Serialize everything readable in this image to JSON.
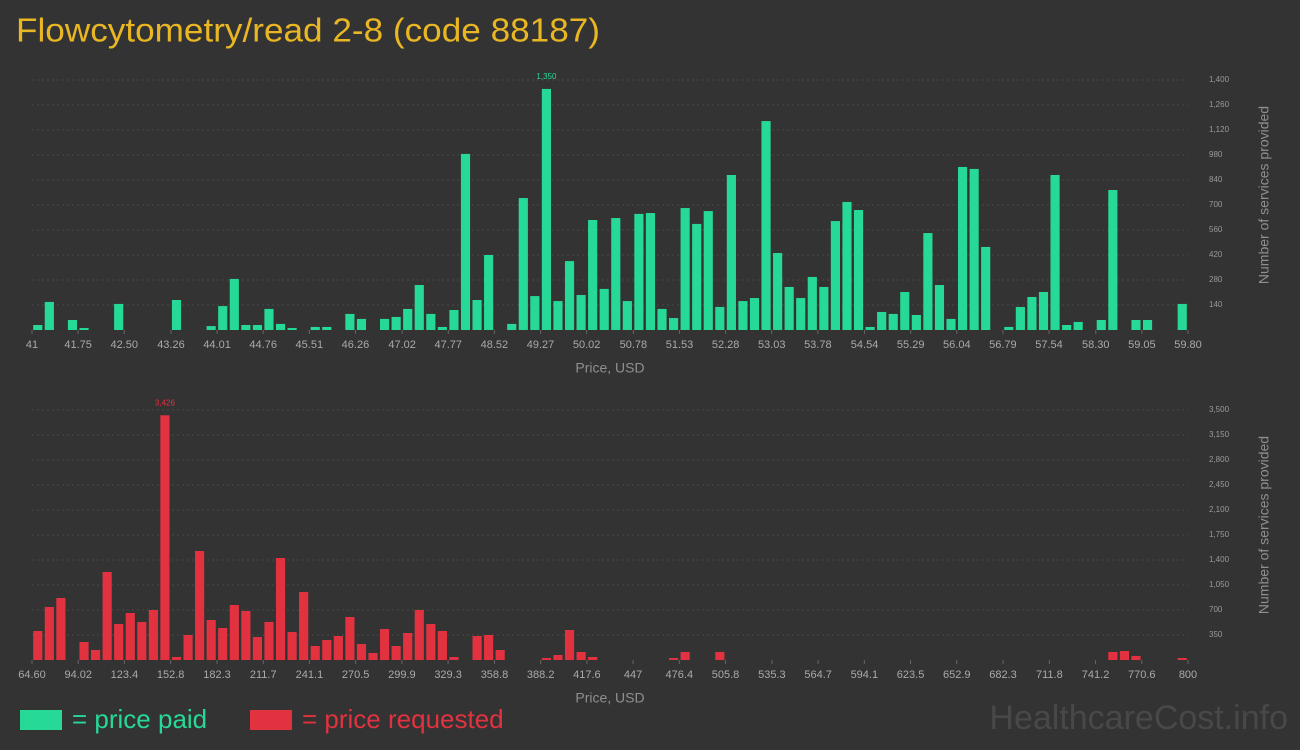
{
  "title": "Flowcytometry/read 2-8 (code 88187)",
  "legend": [
    {
      "label": "= price paid",
      "color": "#26d996"
    },
    {
      "label": "= price requested",
      "color": "#e2323f"
    }
  ],
  "watermark": "HealthcareCost.info",
  "chart_data": [
    {
      "type": "histogram",
      "color": "#26d996",
      "xlabel": "Price, USD",
      "ylabel": "Number of services provided",
      "grid": true,
      "bins": [
        41,
        41.188,
        41.376,
        41.564,
        41.752,
        41.94,
        42.128,
        42.316,
        42.504,
        42.692,
        42.88,
        43.068,
        43.256,
        43.444,
        43.632,
        43.82,
        44.008,
        44.196,
        44.384,
        44.572,
        44.76,
        44.948,
        45.136,
        45.324,
        45.512,
        45.7,
        45.888,
        46.076,
        46.264,
        46.452,
        46.64,
        46.828,
        47.016,
        47.204,
        47.392,
        47.58,
        47.768,
        47.956,
        48.144,
        48.332,
        48.52,
        48.708,
        48.896,
        49.084,
        49.272,
        49.46,
        49.648,
        49.836,
        50.024,
        50.212,
        50.4,
        50.588,
        50.776,
        50.964,
        51.152,
        51.34,
        51.528,
        51.716,
        51.904,
        52.092,
        52.28,
        52.468,
        52.656,
        52.844,
        53.032,
        53.22,
        53.408,
        53.596,
        53.784,
        53.972,
        54.16,
        54.348,
        54.536,
        54.724,
        54.912,
        55.1,
        55.288,
        55.476,
        55.664,
        55.852,
        56.04,
        56.228,
        56.416,
        56.604,
        56.792,
        56.98,
        57.168,
        57.356,
        57.544,
        57.732,
        57.92,
        58.108,
        58.296,
        58.484,
        58.672,
        58.86,
        59.048,
        59.236,
        59.424,
        59.612,
        59.8
      ],
      "values": [
        28,
        157,
        0,
        56,
        11,
        0,
        0,
        146,
        0,
        0,
        0,
        0,
        168,
        0,
        0,
        22,
        134,
        286,
        28,
        28,
        118,
        34,
        11,
        0,
        17,
        17,
        0,
        90,
        62,
        0,
        62,
        73,
        118,
        252,
        90,
        17,
        112,
        986,
        168,
        420,
        0,
        34,
        739,
        190,
        1350,
        162,
        386,
        196,
        616,
        230,
        627,
        162,
        650,
        655,
        118,
        67,
        683,
        594,
        666,
        129,
        868,
        162,
        179,
        1170,
        431,
        241,
        179,
        297,
        241,
        610,
        717,
        672,
        17,
        101,
        90,
        213,
        84,
        543,
        252,
        62,
        913,
        902,
        465,
        0,
        17,
        129,
        185,
        213,
        868,
        28,
        45,
        0,
        56,
        784,
        0,
        56,
        56,
        0,
        0,
        146
      ],
      "value_labels": [
        null,
        null,
        null,
        null,
        null,
        null,
        null,
        null,
        null,
        null,
        null,
        null,
        null,
        null,
        null,
        null,
        null,
        null,
        null,
        null,
        null,
        null,
        null,
        null,
        null,
        null,
        null,
        null,
        null,
        null,
        null,
        null,
        null,
        null,
        null,
        null,
        null,
        null,
        null,
        null,
        null,
        null,
        null,
        null,
        "1,350",
        null,
        null,
        null,
        null,
        null,
        null,
        null,
        null,
        null,
        null,
        null,
        null,
        null,
        null,
        null,
        null,
        null,
        null,
        null,
        null,
        null,
        null,
        null,
        null,
        null,
        null,
        null,
        null,
        null,
        null,
        null,
        null,
        null,
        null,
        null,
        null,
        null,
        null,
        null,
        null,
        null,
        null,
        null,
        null,
        null,
        null,
        null,
        null,
        null,
        null,
        null,
        null,
        null,
        null,
        null
      ],
      "xlim": [
        41,
        59.8
      ],
      "xticks": [
        41,
        41.75,
        {
          "value": 42.5,
          "label": "42.50"
        },
        43.26,
        44.01,
        44.76,
        45.51,
        46.26,
        47.02,
        47.77,
        48.52,
        49.27,
        50.02,
        50.78,
        51.53,
        52.28,
        53.03,
        53.78,
        54.54,
        55.29,
        56.04,
        56.79,
        57.54,
        {
          "value": 58.3,
          "label": "58.30"
        },
        59.05,
        {
          "value": 59.8,
          "label": "59.80"
        }
      ],
      "ylim": [
        0,
        1400
      ],
      "yticks": [
        140,
        280,
        420,
        560,
        700,
        840,
        980,
        {
          "value": 1120,
          "label": "1,120"
        },
        {
          "value": 1260,
          "label": "1,260"
        },
        {
          "value": 1400,
          "label": "1,400"
        }
      ]
    },
    {
      "type": "histogram",
      "color": "#e2323f",
      "xlabel": "Price, USD",
      "ylabel": "Number of services provided",
      "grid": true,
      "bins": [
        64.6,
        71.954,
        79.308,
        86.662,
        94.016,
        101.37,
        108.724,
        116.078,
        123.432,
        130.786,
        138.14,
        145.494,
        152.848,
        160.202,
        167.556,
        174.91,
        182.264,
        189.618,
        196.972,
        204.326,
        211.68,
        219.034,
        226.388,
        233.742,
        241.096,
        248.45,
        255.804,
        263.158,
        270.512,
        277.866,
        285.22,
        292.574,
        299.928,
        307.282,
        314.636,
        321.99,
        329.344,
        336.698,
        344.052,
        351.406,
        358.76,
        366.114,
        373.468,
        380.822,
        388.176,
        395.53,
        402.884,
        410.238,
        417.592,
        424.946,
        432.3,
        439.654,
        447.008,
        454.362,
        461.716,
        469.07,
        476.424,
        483.778,
        491.132,
        498.486,
        505.84,
        513.194,
        520.548,
        527.902,
        535.256,
        542.61,
        549.964,
        557.318,
        564.672,
        572.026,
        579.38,
        586.734,
        594.088,
        601.442,
        608.796,
        616.15,
        623.504,
        630.858,
        638.212,
        645.566,
        652.92,
        660.274,
        667.628,
        674.982,
        682.336,
        689.69,
        697.044,
        704.398,
        711.752,
        719.106,
        726.46,
        733.814,
        741.168,
        748.522,
        755.876,
        763.23,
        770.584,
        777.938,
        785.292,
        792.646,
        800
      ],
      "values": [
        406,
        742,
        868,
        0,
        252,
        140,
        1232,
        504,
        658,
        532,
        700,
        3426,
        42,
        350,
        1526,
        560,
        448,
        770,
        686,
        322,
        532,
        1428,
        392,
        952,
        196,
        280,
        336,
        602,
        224,
        98,
        434,
        196,
        378,
        700,
        504,
        406,
        42,
        0,
        336,
        350,
        140,
        0,
        0,
        0,
        28,
        70,
        420,
        112,
        42,
        0,
        0,
        0,
        0,
        0,
        0,
        28,
        112,
        0,
        0,
        112,
        0,
        0,
        0,
        0,
        0,
        0,
        0,
        0,
        0,
        0,
        0,
        0,
        0,
        0,
        0,
        0,
        0,
        0,
        0,
        0,
        0,
        0,
        0,
        0,
        0,
        0,
        0,
        0,
        0,
        0,
        0,
        0,
        0,
        112,
        126,
        56,
        0,
        0,
        0,
        28
      ],
      "value_labels": [
        null,
        null,
        null,
        null,
        null,
        null,
        null,
        null,
        null,
        null,
        null,
        "3,426",
        null,
        null,
        null,
        null,
        null,
        null,
        null,
        null,
        null,
        null,
        null,
        null,
        null,
        null,
        null,
        null,
        null,
        null,
        null,
        null,
        null,
        null,
        null,
        null,
        null,
        null,
        null,
        null,
        null,
        null,
        null,
        null,
        null,
        null,
        null,
        null,
        null,
        null,
        null,
        null,
        null,
        null,
        null,
        null,
        null,
        null,
        null,
        null,
        null,
        null,
        null,
        null,
        null,
        null,
        null,
        null,
        null,
        null,
        null,
        null,
        null,
        null,
        null,
        null,
        null,
        null,
        null,
        null,
        null,
        null,
        null,
        null,
        null,
        null,
        null,
        null,
        null,
        null,
        null,
        null,
        null,
        null,
        null,
        null,
        null,
        null,
        null,
        null
      ],
      "xlim": [
        64.6,
        800
      ],
      "xticks": [
        {
          "value": 64.6,
          "label": "64.60"
        },
        94.02,
        123.4,
        152.8,
        182.3,
        211.7,
        241.1,
        270.5,
        299.9,
        329.3,
        358.8,
        388.2,
        417.6,
        447,
        476.4,
        505.8,
        535.3,
        564.7,
        594.1,
        623.5,
        652.9,
        682.3,
        711.8,
        741.2,
        770.6,
        800
      ],
      "ylim": [
        0,
        3500
      ],
      "yticks": [
        350,
        700,
        {
          "value": 1050,
          "label": "1,050"
        },
        {
          "value": 1400,
          "label": "1,400"
        },
        {
          "value": 1750,
          "label": "1,750"
        },
        {
          "value": 2100,
          "label": "2,100"
        },
        {
          "value": 2450,
          "label": "2,450"
        },
        {
          "value": 2800,
          "label": "2,800"
        },
        {
          "value": 3150,
          "label": "3,150"
        },
        {
          "value": 3500,
          "label": "3,500"
        }
      ]
    }
  ]
}
